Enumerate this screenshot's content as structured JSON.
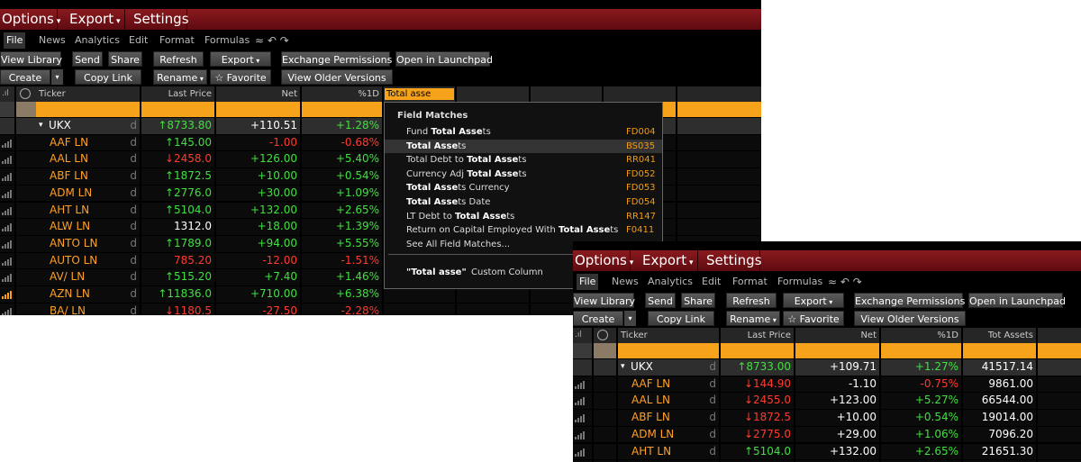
{
  "panels": [
    {
      "menu": [
        "Options",
        "Export",
        "Settings"
      ],
      "tabs": [
        "File",
        "News",
        "Analytics",
        "Edit",
        "Format",
        "Formulas"
      ],
      "buttons": [
        [
          {
            "label": "View Library"
          },
          {
            "label": "Send"
          },
          {
            "label": "Share"
          },
          {
            "label": "Refresh"
          },
          {
            "label": "Export",
            "menu": true
          },
          {
            "label": "Exchange Permissions"
          },
          {
            "label": "Open in Launchpad"
          }
        ],
        [
          {
            "label": "Create",
            "menu": true
          },
          {
            "label": "Copy Link"
          },
          {
            "label": "Rename",
            "menu": true
          },
          {
            "label": "☆ Favorite"
          },
          {
            "label": "View Older Versions"
          }
        ]
      ],
      "columns": [
        "Ticker",
        "Last Price",
        "Net",
        "%1D"
      ],
      "search": "Total asse",
      "rows": [
        {
          "ticker": "UKX",
          "expanded": true,
          "flag": "d",
          "price": "↑8733.80",
          "price_color": "green",
          "net": "+110.51",
          "net_color": "white",
          "pct": "+1.28%",
          "pct_color": "green"
        },
        {
          "ticker": "AAF LN",
          "flag": "d",
          "price": "↑145.00",
          "price_color": "green",
          "net": "-1.00",
          "net_color": "red",
          "pct": "-0.68%",
          "pct_color": "red"
        },
        {
          "ticker": "AAL LN",
          "flag": "d",
          "price": "↓2458.0",
          "price_color": "red",
          "net": "+126.00",
          "net_color": "green",
          "pct": "+5.40%",
          "pct_color": "green"
        },
        {
          "ticker": "ABF LN",
          "flag": "d",
          "price": "↑1872.5",
          "price_color": "green",
          "net": "+10.00",
          "net_color": "green",
          "pct": "+0.54%",
          "pct_color": "green"
        },
        {
          "ticker": "ADM LN",
          "flag": "d",
          "price": "↑2776.0",
          "price_color": "green",
          "net": "+30.00",
          "net_color": "green",
          "pct": "+1.09%",
          "pct_color": "green"
        },
        {
          "ticker": "AHT LN",
          "flag": "d",
          "price": "↑5104.0",
          "price_color": "green",
          "net": "+132.00",
          "net_color": "green",
          "pct": "+2.65%",
          "pct_color": "green"
        },
        {
          "ticker": "ALW LN",
          "flag": "d",
          "price": "1312.0",
          "price_color": "white",
          "net": "+18.00",
          "net_color": "green",
          "pct": "+1.39%",
          "pct_color": "green"
        },
        {
          "ticker": "ANTO LN",
          "flag": "d",
          "price": "↑1789.0",
          "price_color": "green",
          "net": "+94.00",
          "net_color": "green",
          "pct": "+5.55%",
          "pct_color": "green"
        },
        {
          "ticker": "AUTO LN",
          "flag": "d",
          "price": "785.20",
          "price_color": "red",
          "net": "-12.00",
          "net_color": "red",
          "pct": "-1.51%",
          "pct_color": "red"
        },
        {
          "ticker": "AV/ LN",
          "flag": "d",
          "price": "↑515.20",
          "price_color": "green",
          "net": "+7.40",
          "net_color": "green",
          "pct": "+1.46%",
          "pct_color": "green"
        },
        {
          "ticker": "AZN LN",
          "flag": "d",
          "signal_color": "orange",
          "price": "↑11836.0",
          "price_color": "green",
          "net": "+710.00",
          "net_color": "green",
          "pct": "+6.38%",
          "pct_color": "green"
        },
        {
          "ticker": "BA/ LN",
          "flag": "d",
          "price": "↓1180.5",
          "price_color": "red",
          "net": "-27.50",
          "net_color": "red",
          "pct": "-2.28%",
          "pct_color": "red"
        }
      ],
      "dropdown": {
        "title": "Field Matches",
        "items": [
          {
            "label": "Fund Total Assets",
            "code": "FD004"
          },
          {
            "label": "Total Assets",
            "code": "BS035"
          },
          {
            "label": "Total Debt to Total Assets",
            "code": "RR041"
          },
          {
            "label": "Currency Adj Total Assets",
            "code": "FD052"
          },
          {
            "label": "Total Assets Currency",
            "code": "FD053"
          },
          {
            "label": "Total Assets Date",
            "code": "FD054"
          },
          {
            "label": "LT Debt to Total Assets",
            "code": "RR147"
          },
          {
            "label": "Return on Capital Employed With Total Assets",
            "code": "F0411"
          }
        ],
        "highlight": 1,
        "more": "See All Field Matches...",
        "custom_query": "\"Total asse\"",
        "custom_label": "Custom Column"
      }
    },
    {
      "menu": [
        "Options",
        "Export",
        "Settings"
      ],
      "tabs": [
        "File",
        "News",
        "Analytics",
        "Edit",
        "Format",
        "Formulas"
      ],
      "buttons": [
        [
          {
            "label": "View Library"
          },
          {
            "label": "Send"
          },
          {
            "label": "Share"
          },
          {
            "label": "Refresh"
          },
          {
            "label": "Export",
            "menu": true
          },
          {
            "label": "Exchange Permissions"
          },
          {
            "label": "Open in Launchpad"
          }
        ],
        [
          {
            "label": "Create",
            "menu": true
          },
          {
            "label": "Copy Link"
          },
          {
            "label": "Rename",
            "menu": true
          },
          {
            "label": "☆ Favorite"
          },
          {
            "label": "View Older Versions"
          }
        ]
      ],
      "columns": [
        "Ticker",
        "Last Price",
        "Net",
        "%1D",
        "Tot Assets"
      ],
      "rows": [
        {
          "ticker": "UKX",
          "expanded": true,
          "flag": "d",
          "price": "↑8733.00",
          "price_color": "green",
          "net": "+109.71",
          "pct": "+1.27%",
          "pct_color": "green",
          "assets": "41517.14"
        },
        {
          "ticker": "AAF LN",
          "flag": "d",
          "price": "↓144.90",
          "price_color": "red",
          "net": "-1.10",
          "pct": "-0.75%",
          "pct_color": "red",
          "assets": "9861.00"
        },
        {
          "ticker": "AAL LN",
          "flag": "d",
          "price": "↓2455.0",
          "price_color": "red",
          "net": "+123.00",
          "pct": "+5.27%",
          "pct_color": "green",
          "assets": "66544.00"
        },
        {
          "ticker": "ABF LN",
          "flag": "d",
          "price": "↓1872.5",
          "price_color": "red",
          "net": "+10.00",
          "pct": "+0.54%",
          "pct_color": "green",
          "assets": "19014.00"
        },
        {
          "ticker": "ADM LN",
          "flag": "d",
          "price": "↓2775.0",
          "price_color": "red",
          "net": "+29.00",
          "pct": "+1.06%",
          "pct_color": "green",
          "assets": "7096.20"
        },
        {
          "ticker": "AHT LN",
          "flag": "d",
          "price": "↑5104.0",
          "price_color": "green",
          "net": "+132.00",
          "pct": "+2.65%",
          "pct_color": "green",
          "assets": "21651.30"
        }
      ]
    }
  ]
}
